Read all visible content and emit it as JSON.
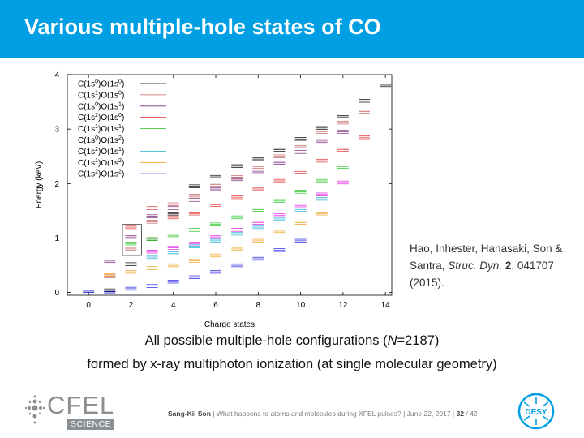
{
  "slide": {
    "title": "Various multiple-hole states of CO",
    "citation_authors": "Hao, Inhester, Hanasaki, Son & Santra,",
    "citation_journal": "Struc. Dyn.",
    "citation_volume": "2",
    "citation_rest": ", 041707 (2015).",
    "caption_line1_pre": "All possible multiple-hole configurations (",
    "caption_line1_var": "N",
    "caption_line1_post": "=2187)",
    "caption_line2": "formed by x-ray multiphoton ionization (at single molecular geometry)"
  },
  "footer": {
    "author": "Sang-Kil Son",
    "sep1": "  |  ",
    "talk": "What happens to atoms and molecules during XFEL pulses?",
    "sep2": "  |  ",
    "date": "June 22, 2017",
    "sep3": "  |  ",
    "page": "32",
    "total": "/ 42",
    "cfel_name": "CFEL",
    "cfel_sub": "SCIENCE",
    "desy_name": "DESY"
  },
  "colors": {
    "header_bg": "#009fe3",
    "white": "#ffffff"
  },
  "chart_data": {
    "type": "scatter",
    "xlabel": "Charge states",
    "ylabel": "Energy (keV)",
    "xlim": [
      -1,
      14.3
    ],
    "ylim": [
      -0.05,
      4
    ],
    "xticks": [
      "0",
      "2",
      "4",
      "6",
      "8",
      "10",
      "12",
      "14"
    ],
    "yticks": [
      "0",
      "1",
      "2",
      "3",
      "4"
    ],
    "legend_position": "top-left",
    "series": [
      {
        "name": "C(1s0)O(1s0)",
        "label": [
          "C(1s",
          "0",
          ")O(1s",
          "0",
          ")"
        ],
        "color": "#000000",
        "xoff": 0.0,
        "points": [
          [
            0,
            0
          ],
          [
            1,
            0.04
          ],
          [
            2,
            0.52
          ],
          [
            3,
            0.98
          ],
          [
            4,
            1.45
          ],
          [
            5,
            1.95
          ],
          [
            6,
            2.15
          ],
          [
            7,
            2.32
          ],
          [
            8,
            2.45
          ],
          [
            9,
            2.62
          ],
          [
            10,
            2.82
          ],
          [
            11,
            3.02
          ],
          [
            12,
            3.25
          ],
          [
            13,
            3.52
          ],
          [
            14,
            3.78
          ]
        ]
      },
      {
        "name": "C(1s1)O(1s0)",
        "label": [
          "C(1s",
          "1",
          ")O(1s",
          "0",
          ")"
        ],
        "color": "#c06060",
        "xoff": 0.0,
        "points": [
          [
            1,
            0.3
          ],
          [
            2,
            0.8
          ],
          [
            3,
            1.3
          ],
          [
            4,
            1.62
          ],
          [
            5,
            1.78
          ],
          [
            6,
            1.98
          ],
          [
            7,
            2.12
          ],
          [
            8,
            2.28
          ],
          [
            9,
            2.5
          ],
          [
            10,
            2.7
          ],
          [
            11,
            2.92
          ],
          [
            12,
            3.12
          ],
          [
            13,
            3.32
          ]
        ]
      },
      {
        "name": "C(1s0)O(1s1)",
        "label": [
          "C(1s",
          "0",
          ")O(1s",
          "1",
          ")"
        ],
        "color": "#7a2a7a",
        "xoff": 0.0,
        "points": [
          [
            1,
            0.55
          ],
          [
            2,
            1.02
          ],
          [
            3,
            1.4
          ],
          [
            4,
            1.55
          ],
          [
            5,
            1.7
          ],
          [
            6,
            1.9
          ],
          [
            7,
            2.08
          ],
          [
            8,
            2.2
          ],
          [
            9,
            2.38
          ],
          [
            10,
            2.58
          ],
          [
            11,
            2.78
          ],
          [
            12,
            2.95
          ]
        ]
      },
      {
        "name": "C(1s2)O(1s0)",
        "label": [
          "C(1s",
          "2",
          ")O(1s",
          "0",
          ")"
        ],
        "color": "#e03030",
        "xoff": 0.0,
        "points": [
          [
            2,
            1.2
          ],
          [
            3,
            1.55
          ],
          [
            4,
            1.38
          ],
          [
            5,
            1.45
          ],
          [
            6,
            1.58
          ],
          [
            7,
            1.75
          ],
          [
            8,
            1.9
          ],
          [
            9,
            2.05
          ],
          [
            10,
            2.22
          ],
          [
            11,
            2.42
          ],
          [
            12,
            2.62
          ],
          [
            13,
            2.85
          ]
        ]
      },
      {
        "name": "C(1s1)O(1s1)",
        "label": [
          "C(1s",
          "1",
          ")O(1s",
          "1",
          ")"
        ],
        "color": "#20c020",
        "xoff": 0.0,
        "points": [
          [
            2,
            0.9
          ],
          [
            3,
            0.98
          ],
          [
            4,
            1.05
          ],
          [
            5,
            1.15
          ],
          [
            6,
            1.25
          ],
          [
            7,
            1.38
          ],
          [
            8,
            1.52
          ],
          [
            9,
            1.68
          ],
          [
            10,
            1.85
          ],
          [
            11,
            2.05
          ],
          [
            12,
            2.28
          ]
        ]
      },
      {
        "name": "C(1s0)O(1s2)",
        "label": [
          "C(1s",
          "0",
          ")O(1s",
          "2",
          ")"
        ],
        "color": "#e020e0",
        "xoff": 0.0,
        "points": [
          [
            3,
            0.75
          ],
          [
            4,
            0.82
          ],
          [
            5,
            0.9
          ],
          [
            6,
            1.02
          ],
          [
            7,
            1.15
          ],
          [
            8,
            1.28
          ],
          [
            9,
            1.42
          ],
          [
            10,
            1.6
          ],
          [
            11,
            1.8
          ],
          [
            12,
            2.02
          ]
        ]
      },
      {
        "name": "C(1s2)O(1s1)",
        "label": [
          "C(1s",
          "2",
          ")O(1s",
          "1",
          ")"
        ],
        "color": "#20b0d0",
        "xoff": 0.0,
        "points": [
          [
            3,
            0.65
          ],
          [
            4,
            0.72
          ],
          [
            5,
            0.85
          ],
          [
            6,
            0.95
          ],
          [
            7,
            1.08
          ],
          [
            8,
            1.2
          ],
          [
            9,
            1.35
          ],
          [
            10,
            1.52
          ],
          [
            11,
            1.72
          ]
        ]
      },
      {
        "name": "C(1s1)O(1s2)",
        "label": [
          "C(1s",
          "1",
          ")O(1s",
          "2",
          ")"
        ],
        "color": "#f0a020",
        "xoff": 0.0,
        "points": [
          [
            1,
            0.32
          ],
          [
            2,
            0.38
          ],
          [
            3,
            0.45
          ],
          [
            4,
            0.5
          ],
          [
            5,
            0.58
          ],
          [
            6,
            0.68
          ],
          [
            7,
            0.8
          ],
          [
            8,
            0.95
          ],
          [
            9,
            1.1
          ],
          [
            10,
            1.28
          ],
          [
            11,
            1.45
          ]
        ]
      },
      {
        "name": "C(1s2)O(1s2)",
        "label": [
          "C(1s",
          "2",
          ")O(1s",
          "2",
          ")"
        ],
        "color": "#2020e0",
        "xoff": 0.0,
        "points": [
          [
            0,
            0
          ],
          [
            1,
            0.02
          ],
          [
            2,
            0.07
          ],
          [
            3,
            0.12
          ],
          [
            4,
            0.2
          ],
          [
            5,
            0.28
          ],
          [
            6,
            0.38
          ],
          [
            7,
            0.5
          ],
          [
            8,
            0.62
          ],
          [
            9,
            0.78
          ],
          [
            10,
            0.95
          ]
        ]
      }
    ],
    "highlight_box": {
      "x": [
        1.6,
        2.5
      ],
      "y": [
        0.68,
        1.25
      ]
    }
  }
}
